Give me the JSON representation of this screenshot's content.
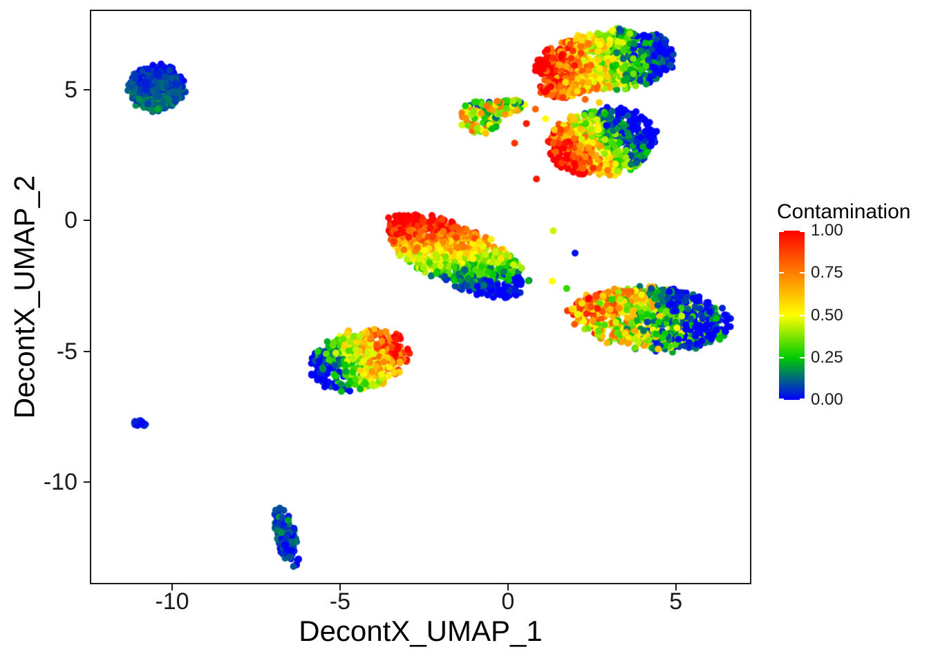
{
  "figure": {
    "background": "#FFFFFF",
    "panel_border_color": "#000000",
    "x_axis": {
      "title": "DecontX_UMAP_1",
      "tick_labels": [
        "-10",
        "-5",
        "0",
        "5"
      ],
      "tick_values": [
        -10,
        -5,
        0,
        5
      ]
    },
    "y_axis": {
      "title": "DecontX_UMAP_2",
      "tick_labels": [
        "5",
        "0",
        "-5",
        "-10"
      ],
      "tick_values": [
        5,
        0,
        -5,
        -10
      ]
    }
  },
  "chart_data": {
    "type": "scatter",
    "title": "",
    "xlabel": "DecontX_UMAP_1",
    "ylabel": "DecontX_UMAP_2",
    "xlim": [
      -12.45,
      7.25
    ],
    "ylim": [
      -13.9,
      8.05
    ],
    "x_ticks": [
      -10,
      -5,
      0,
      5
    ],
    "y_ticks": [
      5,
      0,
      -5,
      -10
    ],
    "grid": false,
    "legend_position": "right",
    "point_radius_px": 5,
    "seed": 123457,
    "color_scale": {
      "title": "Contamination",
      "limits": [
        0,
        1
      ],
      "breaks": [
        1.0,
        0.75,
        0.5,
        0.25,
        0.0
      ],
      "break_labels": [
        "1.00",
        "0.75",
        "0.50",
        "0.25",
        "0.00"
      ],
      "stops": [
        [
          0.0,
          "#0000FF"
        ],
        [
          0.25,
          "#00CC00"
        ],
        [
          0.5,
          "#FFFF00"
        ],
        [
          0.75,
          "#FF7F00"
        ],
        [
          1.0,
          "#FF0000"
        ]
      ]
    },
    "clusters": [
      {
        "name": "upper-left-blue",
        "cx": -10.45,
        "cy": 5.05,
        "rx": 0.82,
        "ry": 0.88,
        "rot": 0,
        "n": 380,
        "grad": {
          "angle": -90,
          "from": 0.03,
          "to": 0.15,
          "noise": 0.06
        }
      },
      {
        "name": "top-right-main",
        "cx": 2.95,
        "cy": 6.1,
        "rx": 2.1,
        "ry": 1.12,
        "rot": 8,
        "n": 880,
        "grad": {
          "angle": 0,
          "from": 1.08,
          "to": -0.15,
          "noise": 0.22
        }
      },
      {
        "name": "top-right-lower-lobe",
        "cx": 1.75,
        "cy": 5.15,
        "rx": 0.8,
        "ry": 0.42,
        "rot": 15,
        "n": 130,
        "grad": {
          "angle": 0,
          "from": 1.0,
          "to": 0.5,
          "noise": 0.2
        }
      },
      {
        "name": "small-arc-left",
        "cx": -0.85,
        "cy": 3.95,
        "rx": 0.6,
        "ry": 0.62,
        "rot": 0,
        "n": 95,
        "grad": {
          "angle": 50,
          "from": 0.62,
          "to": 0.28,
          "noise": 0.3
        }
      },
      {
        "name": "small-arc-right",
        "cx": -0.05,
        "cy": 4.35,
        "rx": 0.58,
        "ry": 0.3,
        "rot": 8,
        "n": 70,
        "grad": {
          "angle": 0,
          "from": 0.55,
          "to": 0.35,
          "noise": 0.3
        }
      },
      {
        "name": "mid-right",
        "cx": 2.8,
        "cy": 3.0,
        "rx": 1.6,
        "ry": 1.25,
        "rot": 12,
        "n": 620,
        "grad": {
          "angle": 20,
          "from": 1.12,
          "to": -0.25,
          "noise": 0.22
        }
      },
      {
        "name": "central",
        "cx": -1.55,
        "cy": -1.35,
        "rx": 2.35,
        "ry": 1.05,
        "rot": -33,
        "n": 850,
        "grad": {
          "angle": -30,
          "from": 1.1,
          "to": -0.12,
          "noise": 0.16
        }
      },
      {
        "name": "lower-middle",
        "cx": -4.45,
        "cy": -5.35,
        "rx": 1.5,
        "ry": 1.08,
        "rot": 25,
        "n": 470,
        "grad": {
          "angle": 0,
          "from": -0.12,
          "to": 1.0,
          "noise": 0.2
        }
      },
      {
        "name": "right",
        "cx": 4.25,
        "cy": -3.75,
        "rx": 2.35,
        "ry": 1.18,
        "rot": -8,
        "n": 760,
        "grad": {
          "angle": 0,
          "from": 0.8,
          "to": -0.08,
          "noise": 0.33
        }
      },
      {
        "name": "right-top-blue-patch",
        "cx": 4.85,
        "cy": -2.95,
        "rx": 0.55,
        "ry": 0.32,
        "rot": 0,
        "n": 55,
        "grad": {
          "angle": 0,
          "from": 0.18,
          "to": 0.0,
          "noise": 0.12
        }
      },
      {
        "name": "tiny-left-dot",
        "cx": -10.95,
        "cy": -7.7,
        "rx": 0.2,
        "ry": 0.17,
        "rot": 0,
        "n": 14,
        "grad": {
          "angle": 0,
          "from": 0.08,
          "to": 0.0,
          "noise": 0.05
        }
      },
      {
        "name": "bottom-small",
        "cx": -6.6,
        "cy": -12.1,
        "rx": 1.15,
        "ry": 0.3,
        "rot": -78,
        "n": 115,
        "grad": {
          "angle": 0,
          "from": 0.12,
          "to": 0.02,
          "noise": 0.1
        }
      }
    ],
    "outliers": [
      [
        0.82,
        4.25,
        0.8
      ],
      [
        1.12,
        3.88,
        0.5
      ],
      [
        0.55,
        3.7,
        0.95
      ],
      [
        0.2,
        2.95,
        0.9
      ],
      [
        2.3,
        4.62,
        0.8
      ],
      [
        2.72,
        4.5,
        0.6
      ],
      [
        0.85,
        1.58,
        0.95
      ],
      [
        2.0,
        -1.25,
        0.02
      ],
      [
        1.32,
        -2.32,
        0.5
      ],
      [
        1.75,
        -2.6,
        0.3
      ],
      [
        1.35,
        -0.4,
        0.45
      ]
    ]
  }
}
